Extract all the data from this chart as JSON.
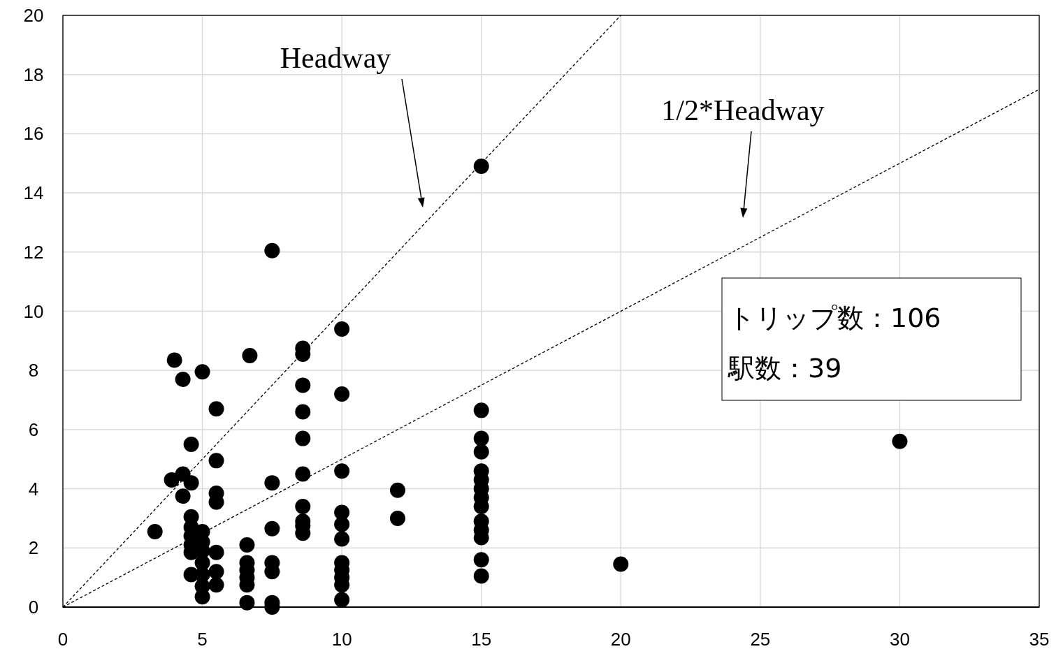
{
  "chart_data": {
    "type": "scatter",
    "xlim": [
      0,
      35
    ],
    "ylim": [
      0,
      20
    ],
    "xticks": [
      0,
      5,
      10,
      15,
      20,
      25,
      30,
      35
    ],
    "yticks": [
      0,
      2,
      4,
      6,
      8,
      10,
      12,
      14,
      16,
      18,
      20
    ],
    "grid": true,
    "marker": "circle",
    "series": [
      {
        "color": "#000000",
        "x": [
          3.3,
          4.0,
          4.3,
          5.0,
          4.6,
          3.9,
          4.3,
          4.6,
          4.3,
          5.5,
          5.5,
          5.5,
          5.5,
          5.5,
          5.5,
          5.5,
          4.6,
          4.6,
          4.6,
          4.6,
          4.6,
          4.6,
          5.0,
          5.0,
          5.0,
          5.0,
          5.0,
          5.0,
          5.0,
          6.7,
          6.6,
          6.6,
          6.6,
          6.6,
          6.6,
          6.6,
          7.5,
          7.5,
          7.5,
          7.5,
          7.5,
          7.5,
          7.5,
          8.6,
          8.6,
          8.6,
          8.6,
          8.6,
          8.6,
          8.6,
          8.6,
          8.6,
          8.6,
          10,
          10,
          10,
          10,
          10,
          10,
          10,
          10,
          10,
          10,
          10,
          12,
          12,
          15,
          15,
          15,
          15,
          15,
          15,
          15,
          15,
          15,
          15,
          15,
          15,
          15,
          15,
          20,
          30
        ],
        "values": [
          2.55,
          8.35,
          7.7,
          7.95,
          5.5,
          4.3,
          4.5,
          4.2,
          3.75,
          6.7,
          4.95,
          3.85,
          3.55,
          1.85,
          1.2,
          0.75,
          3.05,
          2.7,
          2.4,
          2.1,
          1.85,
          1.1,
          2.55,
          2.2,
          1.9,
          1.5,
          1.1,
          0.7,
          0.35,
          8.5,
          2.1,
          1.5,
          1.25,
          1.0,
          0.75,
          0.15,
          12.05,
          4.2,
          2.65,
          1.5,
          1.2,
          0.15,
          0.0,
          8.75,
          8.55,
          7.5,
          6.6,
          5.7,
          4.5,
          3.4,
          2.9,
          2.75,
          2.5,
          9.4,
          7.2,
          4.6,
          3.2,
          2.8,
          2.3,
          1.5,
          1.25,
          1.0,
          0.75,
          0.25,
          3.95,
          3.0,
          14.9,
          6.65,
          5.7,
          5.25,
          4.6,
          4.3,
          4.0,
          3.7,
          3.4,
          2.9,
          2.6,
          2.35,
          1.6,
          1.05,
          1.45,
          5.6
        ]
      },
      {
        "type": "line",
        "color": "#000000",
        "marker": "none",
        "line_style": "dashed",
        "x": [
          0,
          20
        ],
        "values": [
          0,
          20
        ]
      },
      {
        "type": "line",
        "color": "#000000",
        "marker": "none",
        "line_style": "dashed",
        "x": [
          0,
          35
        ],
        "values": [
          0,
          17.5
        ]
      }
    ],
    "annotations": [
      "Headway",
      "1/2*Headway",
      "トリップ数：106",
      "駅数：39"
    ]
  }
}
